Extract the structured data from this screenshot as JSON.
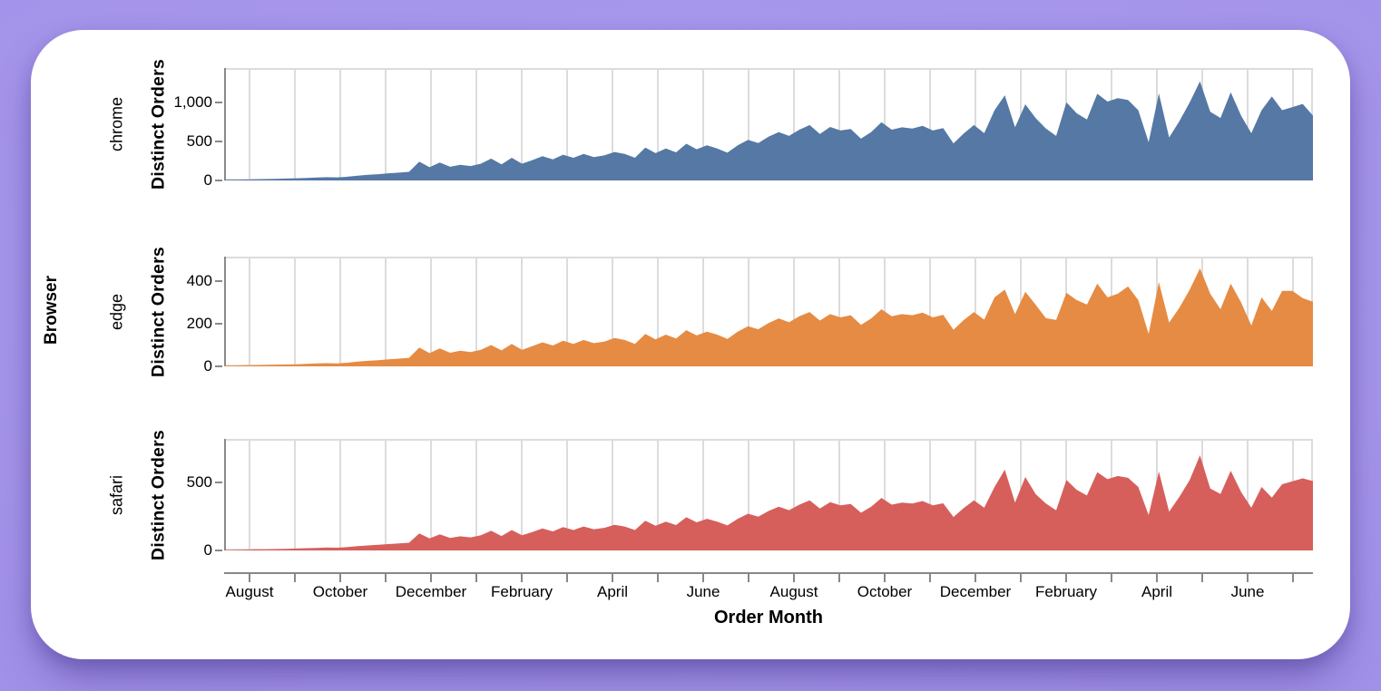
{
  "colors": {
    "page_background": "#a392e9",
    "card_background": "#ffffff",
    "grid_line": "#dcdcdc",
    "axis_line": "#888888",
    "text": "#000000"
  },
  "chart_data": {
    "type": "area",
    "title": "",
    "faceted_by": "Browser",
    "x_field": "Order Month",
    "y_field": "Distinct Orders",
    "granularity": "weekly",
    "x_span_months": 24,
    "grid": true,
    "legend": false,
    "x_tick_labels": [
      "August",
      "October",
      "December",
      "February",
      "April",
      "June",
      "August",
      "October",
      "December",
      "February",
      "April",
      "June"
    ],
    "series": [
      {
        "name": "chrome",
        "color": "#5578a4",
        "y_ticks": [
          0,
          500,
          1000
        ],
        "y_tick_labels": [
          "0",
          "500",
          "1,000"
        ],
        "y_max": 1440,
        "values": [
          8,
          10,
          12,
          15,
          18,
          20,
          24,
          28,
          33,
          38,
          42,
          40,
          48,
          60,
          72,
          80,
          92,
          100,
          110,
          240,
          170,
          230,
          175,
          200,
          185,
          215,
          280,
          205,
          290,
          215,
          260,
          310,
          270,
          330,
          290,
          340,
          300,
          320,
          365,
          340,
          290,
          420,
          350,
          410,
          360,
          470,
          400,
          450,
          410,
          355,
          450,
          520,
          480,
          560,
          620,
          570,
          650,
          710,
          595,
          685,
          640,
          660,
          535,
          620,
          745,
          650,
          680,
          665,
          700,
          640,
          670,
          475,
          600,
          710,
          605,
          900,
          1090,
          680,
          975,
          800,
          665,
          570,
          1000,
          860,
          780,
          1110,
          1010,
          1055,
          1030,
          900,
          490,
          1115,
          550,
          760,
          1000,
          1270,
          880,
          800,
          1130,
          830,
          605,
          900,
          1075,
          900,
          940,
          980,
          830
        ]
      },
      {
        "name": "edge",
        "color": "#e68b43",
        "y_ticks": [
          0,
          200,
          400
        ],
        "y_tick_labels": [
          "0",
          "200",
          "400"
        ],
        "y_max": 515,
        "values": [
          3,
          4,
          5,
          6,
          7,
          8,
          9,
          10,
          12,
          14,
          15,
          14,
          17,
          22,
          26,
          29,
          33,
          36,
          40,
          88,
          62,
          84,
          64,
          73,
          67,
          78,
          100,
          75,
          105,
          78,
          95,
          113,
          98,
          120,
          105,
          124,
          109,
          116,
          133,
          124,
          105,
          152,
          127,
          149,
          131,
          170,
          145,
          163,
          149,
          129,
          163,
          188,
          174,
          203,
          225,
          207,
          235,
          255,
          215,
          245,
          230,
          240,
          195,
          225,
          268,
          235,
          245,
          240,
          252,
          230,
          242,
          172,
          217,
          255,
          219,
          324,
          360,
          245,
          350,
          290,
          226,
          218,
          345,
          311,
          290,
          388,
          324,
          341,
          375,
          311,
          153,
          396,
          205,
          275,
          360,
          460,
          341,
          268,
          388,
          300,
          192,
          324,
          260,
          354,
          354,
          320,
          303
        ]
      },
      {
        "name": "safari",
        "color": "#d65f5c",
        "y_ticks": [
          0,
          500
        ],
        "y_tick_labels": [
          "0",
          "500"
        ],
        "y_max": 820,
        "values": [
          4,
          5,
          6,
          8,
          9,
          10,
          12,
          14,
          17,
          19,
          21,
          20,
          25,
          31,
          37,
          41,
          47,
          52,
          57,
          125,
          88,
          119,
          91,
          104,
          96,
          111,
          145,
          106,
          150,
          111,
          135,
          161,
          140,
          171,
          150,
          176,
          156,
          166,
          189,
          176,
          150,
          218,
          181,
          212,
          187,
          244,
          207,
          233,
          212,
          184,
          233,
          270,
          249,
          290,
          322,
          296,
          337,
          368,
          309,
          355,
          332,
          342,
          277,
          322,
          386,
          337,
          352,
          345,
          363,
          332,
          347,
          246,
          311,
          368,
          314,
          467,
          594,
          352,
          540,
          415,
          345,
          295,
          519,
          446,
          404,
          575,
          524,
          547,
          534,
          467,
          260,
          580,
          285,
          394,
          518,
          700,
          456,
          415,
          586,
          430,
          314,
          467,
          389,
          487,
          508,
          530,
          510
        ]
      }
    ]
  }
}
